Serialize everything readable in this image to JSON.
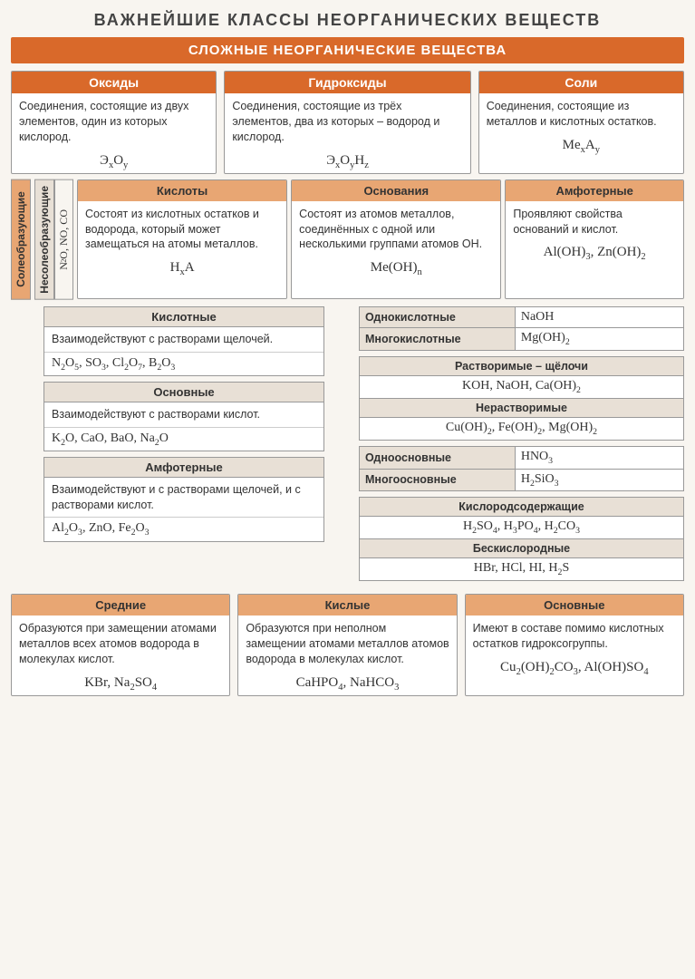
{
  "colors": {
    "primary": "#d9692a",
    "secondary": "#e8a673",
    "tertiary": "#e8e0d6",
    "border": "#999",
    "bg": "#f8f5f0"
  },
  "title": "ВАЖНЕЙШИЕ КЛАССЫ НЕОРГАНИЧЕСКИХ ВЕЩЕСТВ",
  "banner": "СЛОЖНЫЕ НЕОРГАНИЧЕСКИЕ ВЕЩЕСТВА",
  "top": [
    {
      "h": "Оксиды",
      "b": "Соединения, состоящие из двух элементов, один из которых кислород.",
      "f": "Э<sub>x</sub>O<sub>y</sub>"
    },
    {
      "h": "Гидроксиды",
      "b": "Соединения, состоящие из трёх элементов, два из которых – водород и кислород.",
      "f": "Э<sub>x</sub>O<sub>y</sub>H<sub>z</sub>"
    },
    {
      "h": "Соли",
      "b": "Соединения, состоящие из металлов и кислотных остатков.",
      "f": "Me<sub>x</sub>A<sub>y</sub>"
    }
  ],
  "vert1": "Солеобразующие",
  "vert2": "Несолеобразующие",
  "vert2f": "N<sub>2</sub>O, NO, CO",
  "hyd": [
    {
      "h": "Кислоты",
      "b": "Состоят из кислотных остатков и водорода, который может замещаться на атомы металлов.",
      "f": "H<sub>x</sub>A"
    },
    {
      "h": "Основания",
      "b": "Состоят из атомов металлов, соединённых с одной или несколькими группами атомов OH.",
      "f": "Me(OH)<sub>n</sub>"
    },
    {
      "h": "Амфотерные",
      "b": "Проявляют свойства оснований и кислот.",
      "f": "Al(OH)<sub>3</sub>, Zn(OH)<sub>2</sub>"
    }
  ],
  "ox": [
    {
      "h": "Кислотные",
      "b": "Взаимодействуют с растворами щелочей.",
      "f": "N<sub>2</sub>O<sub>5</sub>, SO<sub>3</sub>, Cl<sub>2</sub>O<sub>7</sub>, B<sub>2</sub>O<sub>3</sub>"
    },
    {
      "h": "Основные",
      "b": "Взаимодействуют с растворами кислот.",
      "f": "K<sub>2</sub>O, CaO, BaO, Na<sub>2</sub>O"
    },
    {
      "h": "Амфотерные",
      "b": "Взаимодействуют и с растворами щелочей, и с растворами кислот.",
      "f": "Al<sub>2</sub>O<sub>3</sub>, ZnO, Fe<sub>2</sub>O<sub>3</sub>"
    }
  ],
  "base1": [
    [
      "Однокислотные",
      "NaOH"
    ],
    [
      "Многокислотные",
      "Mg(OH)<sub>2</sub>"
    ]
  ],
  "base2": [
    {
      "h": "Растворимые – щёлочи",
      "f": "KOH, NaOH, Ca(OH)<sub>2</sub>"
    },
    {
      "h": "Нерастворимые",
      "f": "Cu(OH)<sub>2</sub>, Fe(OH)<sub>2</sub>, Mg(OH)<sub>2</sub>"
    }
  ],
  "acid1": [
    [
      "Одноосновные",
      "HNO<sub>3</sub>"
    ],
    [
      "Многоосновные",
      "H<sub>2</sub>SiO<sub>3</sub>"
    ]
  ],
  "acid2": [
    {
      "h": "Кислородсодержащие",
      "f": "H<sub>2</sub>SO<sub>4</sub>, H<sub>3</sub>PO<sub>4</sub>, H<sub>2</sub>CO<sub>3</sub>"
    },
    {
      "h": "Бескислородные",
      "f": "HBr, HCl, HI, H<sub>2</sub>S"
    }
  ],
  "salts": [
    {
      "h": "Средние",
      "b": "Образуются при замещении атомами металлов всех атомов водорода в молекулах кислот.",
      "f": "KBr, Na<sub>2</sub>SO<sub>4</sub>"
    },
    {
      "h": "Кислые",
      "b": "Образуются при неполном замещении атомами металлов атомов водорода в молекулах кислот.",
      "f": "CaHPO<sub>4</sub>, NaHCO<sub>3</sub>"
    },
    {
      "h": "Основные",
      "b": "Имеют в составе помимо кислотных остатков гидроксогруппы.",
      "f": "Cu<sub>2</sub>(OH)<sub>2</sub>CO<sub>3</sub>, Al(OH)SO<sub>4</sub>"
    }
  ]
}
